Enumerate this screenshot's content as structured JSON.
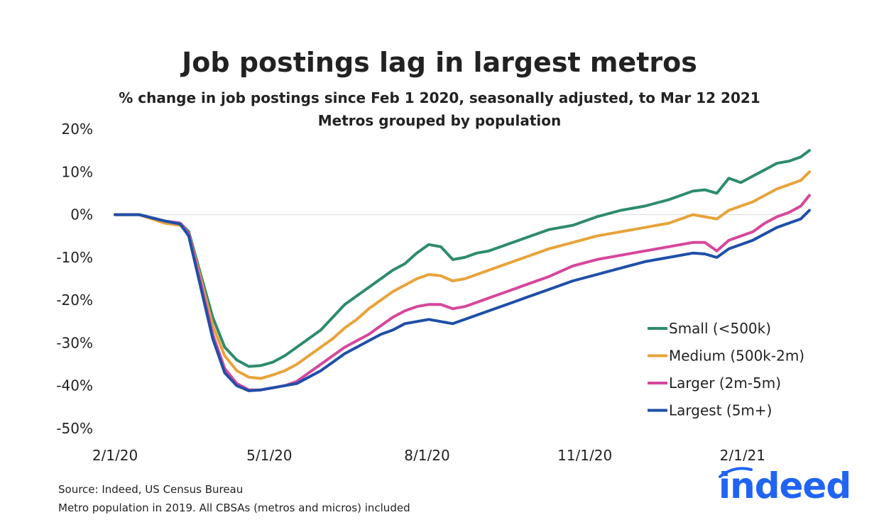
{
  "title": "Job postings lag in largest metros",
  "subtitle": "% change in job postings since Feb 1 2020, seasonally adjusted, to Mar 12 2021",
  "subtitle2": "Metros grouped by population",
  "source_line1": "Source: Indeed, US Census Bureau",
  "source_line2": "Metro population in 2019. All CBSAs (metros and micros) included",
  "logo_text": "indeed",
  "colors": {
    "small": "#2e8b6e",
    "medium": "#e8a33a",
    "larger": "#d6479b",
    "largest": "#1f4fa8",
    "zero_line": "#d9d9d9",
    "logo": "#2164f3"
  },
  "chart_data": {
    "type": "line",
    "title": "Job postings lag in largest metros",
    "ylim": [
      -50,
      20
    ],
    "yticks": [
      20,
      10,
      0,
      -10,
      -20,
      -30,
      -40,
      -50
    ],
    "ytick_labels": [
      "20%",
      "10%",
      "0%",
      "-10%",
      "-20%",
      "-30%",
      "-40%",
      "-50%"
    ],
    "xlim": [
      "2020-02-01",
      "2021-03-12"
    ],
    "xticks": [
      "2020-02-01",
      "2020-05-01",
      "2020-08-01",
      "2020-11-01",
      "2021-02-01"
    ],
    "xtick_labels": [
      "2/1/20",
      "5/1/20",
      "8/1/20",
      "11/1/20",
      "2/1/21"
    ],
    "grid": false,
    "legend_position": "bottom-right",
    "x": [
      "2020-02-01",
      "2020-02-15",
      "2020-03-01",
      "2020-03-10",
      "2020-03-15",
      "2020-03-22",
      "2020-03-29",
      "2020-04-05",
      "2020-04-12",
      "2020-04-19",
      "2020-04-26",
      "2020-05-03",
      "2020-05-10",
      "2020-05-17",
      "2020-05-24",
      "2020-05-31",
      "2020-06-07",
      "2020-06-14",
      "2020-06-21",
      "2020-06-28",
      "2020-07-05",
      "2020-07-12",
      "2020-07-19",
      "2020-07-26",
      "2020-08-02",
      "2020-08-09",
      "2020-08-16",
      "2020-08-23",
      "2020-08-30",
      "2020-09-06",
      "2020-09-13",
      "2020-09-20",
      "2020-09-27",
      "2020-10-11",
      "2020-10-25",
      "2020-11-08",
      "2020-11-22",
      "2020-12-06",
      "2020-12-20",
      "2021-01-03",
      "2021-01-10",
      "2021-01-17",
      "2021-01-24",
      "2021-01-31",
      "2021-02-07",
      "2021-02-14",
      "2021-02-21",
      "2021-02-28",
      "2021-03-07",
      "2021-03-12"
    ],
    "series": [
      {
        "name": "Small (<500k)",
        "color": "#2e8b6e",
        "values": [
          0,
          0,
          -1.5,
          -2,
          -4,
          -14,
          -24,
          -31,
          -34,
          -35.5,
          -35.3,
          -34.5,
          -33,
          -31,
          -29,
          -27,
          -24,
          -21,
          -19,
          -17,
          -15,
          -13,
          -11.5,
          -9,
          -7,
          -7.5,
          -10.5,
          -10,
          -9,
          -8.5,
          -7.5,
          -6.5,
          -5.5,
          -3.5,
          -2.5,
          -0.5,
          1,
          2,
          3.5,
          5.5,
          5.8,
          5,
          8.5,
          7.5,
          9,
          10.5,
          12,
          12.5,
          13.5,
          15
        ]
      },
      {
        "name": "Medium (500k-2m)",
        "color": "#e8a33a",
        "values": [
          0,
          0,
          -2,
          -2.5,
          -4.5,
          -15,
          -26,
          -33,
          -36.5,
          -38,
          -38.3,
          -37.5,
          -36.5,
          -35,
          -33,
          -31,
          -29,
          -26.5,
          -24.5,
          -22,
          -20,
          -18,
          -16.5,
          -15,
          -14,
          -14.3,
          -15.5,
          -15,
          -14,
          -13,
          -12,
          -11,
          -10,
          -8,
          -6.5,
          -5,
          -4,
          -3,
          -2,
          0,
          -0.5,
          -1,
          1,
          2,
          3,
          4.5,
          6,
          7,
          8,
          10
        ]
      },
      {
        "name": "Larger (2m-5m)",
        "color": "#d6479b",
        "values": [
          0,
          0,
          -1.5,
          -2,
          -4.5,
          -16,
          -28,
          -36,
          -39.5,
          -41,
          -41,
          -40.5,
          -40,
          -39,
          -37,
          -35,
          -33,
          -31,
          -29.5,
          -28,
          -26,
          -24,
          -22.5,
          -21.5,
          -21,
          -21,
          -22,
          -21.5,
          -20.5,
          -19.5,
          -18.5,
          -17.5,
          -16.5,
          -14.5,
          -12,
          -10.5,
          -9.5,
          -8.5,
          -7.5,
          -6.5,
          -6.5,
          -8.5,
          -6,
          -5,
          -4,
          -2,
          -0.5,
          0.5,
          2,
          4.5
        ]
      },
      {
        "name": "Largest (5m+)",
        "color": "#1f4fa8",
        "values": [
          0,
          0,
          -1.5,
          -2.2,
          -5,
          -17,
          -29,
          -37,
          -40,
          -41.2,
          -41,
          -40.5,
          -40,
          -39.5,
          -38,
          -36.5,
          -34.5,
          -32.5,
          -31,
          -29.5,
          -28,
          -27,
          -25.5,
          -25,
          -24.5,
          -25,
          -25.5,
          -24.5,
          -23.5,
          -22.5,
          -21.5,
          -20.5,
          -19.5,
          -17.5,
          -15.5,
          -14,
          -12.5,
          -11,
          -10,
          -9,
          -9.2,
          -10,
          -8,
          -7,
          -6,
          -4.5,
          -3,
          -2,
          -1,
          1
        ]
      }
    ]
  }
}
